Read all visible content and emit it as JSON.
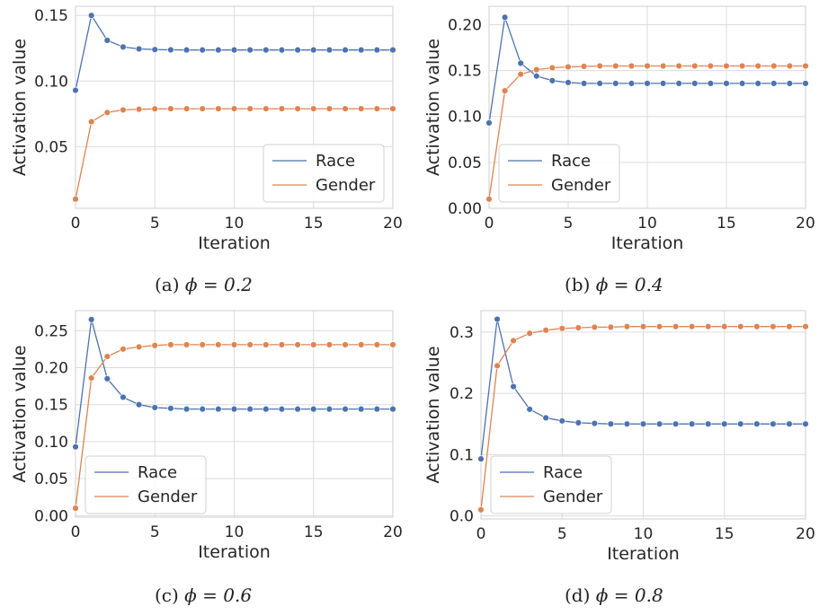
{
  "chart_data": [
    {
      "type": "line",
      "caption": "(a)",
      "phi_label": "ϕ = 0.2",
      "xlabel": "Iteration",
      "ylabel": "Activation value",
      "xlim": [
        0,
        20
      ],
      "ylim": [
        0.003,
        0.157
      ],
      "xticks": [
        0,
        5,
        10,
        15,
        20
      ],
      "yticks": [
        0.05,
        0.1,
        0.15
      ],
      "ytick_labels": [
        "0.05",
        "0.10",
        "0.15"
      ],
      "grid": true,
      "legend_position": "lower-right",
      "x": [
        0,
        1,
        2,
        3,
        4,
        5,
        6,
        7,
        8,
        9,
        10,
        11,
        12,
        13,
        14,
        15,
        16,
        17,
        18,
        19,
        20
      ],
      "series": [
        {
          "name": "Race",
          "color": "#4c72b0",
          "values": [
            0.093,
            0.15,
            0.131,
            0.126,
            0.1245,
            0.124,
            0.1238,
            0.1237,
            0.1237,
            0.1237,
            0.1237,
            0.1237,
            0.1237,
            0.1237,
            0.1237,
            0.1237,
            0.1237,
            0.1237,
            0.1237,
            0.1237,
            0.1237
          ]
        },
        {
          "name": "Gender",
          "color": "#dd8452",
          "values": [
            0.01,
            0.069,
            0.076,
            0.078,
            0.0785,
            0.0788,
            0.0789,
            0.0789,
            0.0789,
            0.0789,
            0.0789,
            0.0789,
            0.0789,
            0.0789,
            0.0789,
            0.0789,
            0.0789,
            0.0789,
            0.0789,
            0.0789,
            0.0789
          ]
        }
      ]
    },
    {
      "type": "line",
      "caption": "(b)",
      "phi_label": "ϕ = 0.4",
      "xlabel": "Iteration",
      "ylabel": "Activation value",
      "xlim": [
        0,
        20
      ],
      "ylim": [
        0.0,
        0.22
      ],
      "xticks": [
        0,
        5,
        10,
        15,
        20
      ],
      "yticks": [
        0.0,
        0.05,
        0.1,
        0.15,
        0.2
      ],
      "ytick_labels": [
        "0.00",
        "0.05",
        "0.10",
        "0.15",
        "0.20"
      ],
      "grid": true,
      "legend_position": "lower-left",
      "x": [
        0,
        1,
        2,
        3,
        4,
        5,
        6,
        7,
        8,
        9,
        10,
        11,
        12,
        13,
        14,
        15,
        16,
        17,
        18,
        19,
        20
      ],
      "series": [
        {
          "name": "Race",
          "color": "#4c72b0",
          "values": [
            0.093,
            0.208,
            0.158,
            0.144,
            0.139,
            0.137,
            0.136,
            0.136,
            0.136,
            0.136,
            0.136,
            0.136,
            0.136,
            0.136,
            0.136,
            0.136,
            0.136,
            0.136,
            0.136,
            0.136,
            0.136
          ]
        },
        {
          "name": "Gender",
          "color": "#dd8452",
          "values": [
            0.01,
            0.128,
            0.146,
            0.151,
            0.153,
            0.154,
            0.1545,
            0.155,
            0.155,
            0.155,
            0.155,
            0.155,
            0.155,
            0.155,
            0.155,
            0.155,
            0.155,
            0.155,
            0.155,
            0.155,
            0.155
          ]
        }
      ]
    },
    {
      "type": "line",
      "caption": "(c)",
      "phi_label": "ϕ = 0.6",
      "xlabel": "Iteration",
      "ylabel": "Activation value",
      "xlim": [
        0,
        20
      ],
      "ylim": [
        -0.002,
        0.277
      ],
      "xticks": [
        0,
        5,
        10,
        15,
        20
      ],
      "yticks": [
        0.0,
        0.05,
        0.1,
        0.15,
        0.2,
        0.25
      ],
      "ytick_labels": [
        "0.00",
        "0.05",
        "0.10",
        "0.15",
        "0.20",
        "0.25"
      ],
      "grid": true,
      "legend_position": "lower-left",
      "x": [
        0,
        1,
        2,
        3,
        4,
        5,
        6,
        7,
        8,
        9,
        10,
        11,
        12,
        13,
        14,
        15,
        16,
        17,
        18,
        19,
        20
      ],
      "series": [
        {
          "name": "Race",
          "color": "#4c72b0",
          "values": [
            0.093,
            0.265,
            0.185,
            0.16,
            0.15,
            0.146,
            0.145,
            0.144,
            0.144,
            0.144,
            0.144,
            0.144,
            0.144,
            0.144,
            0.144,
            0.144,
            0.144,
            0.144,
            0.144,
            0.144,
            0.144
          ]
        },
        {
          "name": "Gender",
          "color": "#dd8452",
          "values": [
            0.01,
            0.186,
            0.215,
            0.225,
            0.228,
            0.23,
            0.231,
            0.231,
            0.231,
            0.231,
            0.231,
            0.231,
            0.231,
            0.231,
            0.231,
            0.231,
            0.231,
            0.231,
            0.231,
            0.231,
            0.231
          ]
        }
      ]
    },
    {
      "type": "line",
      "caption": "(d)",
      "phi_label": "ϕ = 0.8",
      "xlabel": "Iteration",
      "ylabel": "Activation value",
      "xlim": [
        0,
        20
      ],
      "ylim": [
        -0.005,
        0.335
      ],
      "xticks": [
        0,
        5,
        10,
        15,
        20
      ],
      "yticks": [
        0.0,
        0.1,
        0.2,
        0.3
      ],
      "ytick_labels": [
        "0.0",
        "0.1",
        "0.2",
        "0.3"
      ],
      "grid": true,
      "legend_position": "lower-left",
      "x": [
        0,
        1,
        2,
        3,
        4,
        5,
        6,
        7,
        8,
        9,
        10,
        11,
        12,
        13,
        14,
        15,
        16,
        17,
        18,
        19,
        20
      ],
      "series": [
        {
          "name": "Race",
          "color": "#4c72b0",
          "values": [
            0.093,
            0.321,
            0.211,
            0.174,
            0.16,
            0.155,
            0.152,
            0.151,
            0.15,
            0.15,
            0.15,
            0.15,
            0.15,
            0.15,
            0.15,
            0.15,
            0.15,
            0.15,
            0.15,
            0.15,
            0.15
          ]
        },
        {
          "name": "Gender",
          "color": "#dd8452",
          "values": [
            0.01,
            0.245,
            0.286,
            0.298,
            0.303,
            0.306,
            0.307,
            0.308,
            0.308,
            0.309,
            0.309,
            0.309,
            0.309,
            0.309,
            0.309,
            0.309,
            0.309,
            0.309,
            0.309,
            0.309,
            0.309
          ]
        }
      ]
    }
  ]
}
